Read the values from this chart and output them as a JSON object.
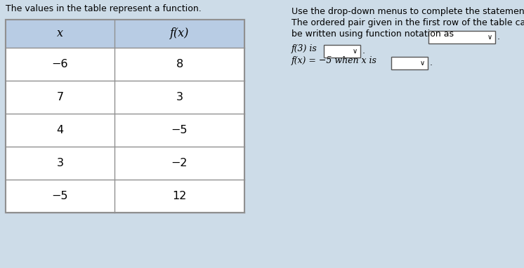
{
  "title_left": "The values in the table represent a function.",
  "right_line0": "Use the drop-down menus to complete the statements.",
  "right_line1": "The ordered pair given in the first row of the table can",
  "right_line2": "be written using function notation as",
  "right_line3_a": "f(3) is",
  "right_line4_a": "f(x) = −5 when x is",
  "col_headers": [
    "x",
    "f(x)"
  ],
  "rows": [
    [
      "−6",
      "8"
    ],
    [
      "7",
      "3"
    ],
    [
      "4",
      "−5"
    ],
    [
      "3",
      "−2"
    ],
    [
      "−5",
      "12"
    ]
  ],
  "header_bg": "#b8cce4",
  "row_bg": "#ffffff",
  "border_color": "#909090",
  "text_color": "#000000",
  "bg_color": "#cddce8",
  "dropdown_color": "#ffffff",
  "dropdown_border": "#555555",
  "font_size": 9.0,
  "table_font_size": 11.5,
  "fig_w": 7.46,
  "fig_h": 3.82,
  "dpi": 100
}
